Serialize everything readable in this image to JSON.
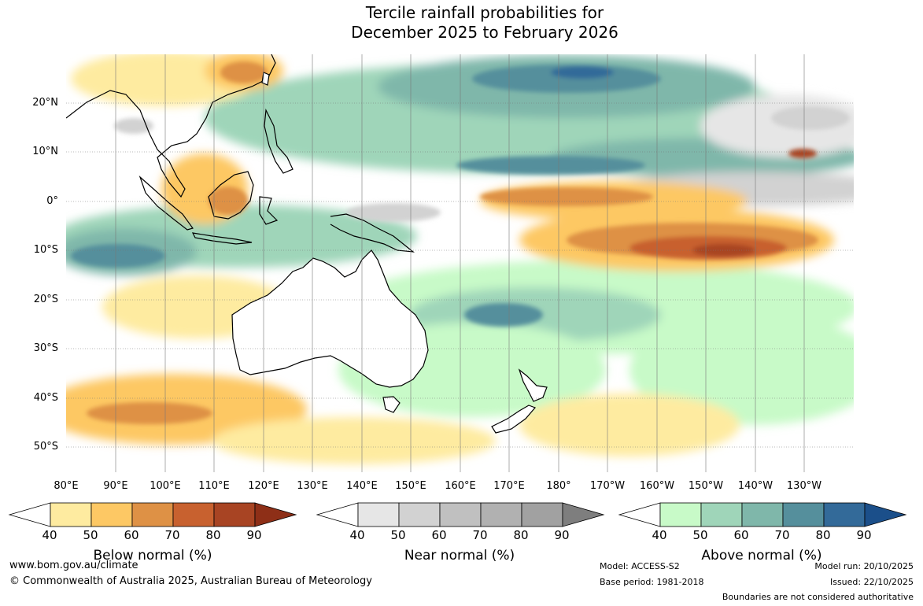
{
  "title": {
    "line1": "Tercile rainfall probabilities for",
    "line2": "December 2025 to February 2026"
  },
  "map": {
    "lat_labels": [
      "20°N",
      "10°N",
      "0°",
      "10°S",
      "20°S",
      "30°S",
      "40°S",
      "50°S"
    ],
    "lon_labels": [
      "80°E",
      "90°E",
      "100°E",
      "110°E",
      "120°E",
      "130°E",
      "140°E",
      "150°E",
      "160°E",
      "170°E",
      "180°",
      "170°W",
      "160°W",
      "150°W",
      "140°W",
      "130°W"
    ]
  },
  "colorbars": [
    {
      "title": "Below normal (%)",
      "ticks": [
        "40",
        "50",
        "60",
        "70",
        "80",
        "90"
      ],
      "colors": [
        "#ffffff",
        "#feeba0",
        "#fdc864",
        "#de9145",
        "#c8612f",
        "#a84423",
        "#8e2f17"
      ]
    },
    {
      "title": "Near normal (%)",
      "ticks": [
        "40",
        "50",
        "60",
        "70",
        "80",
        "90"
      ],
      "colors": [
        "#ffffff",
        "#e6e6e6",
        "#d2d2d2",
        "#c0c0c0",
        "#b1b1b1",
        "#a1a1a1",
        "#7e7e7e"
      ]
    },
    {
      "title": "Above normal (%)",
      "ticks": [
        "40",
        "50",
        "60",
        "70",
        "80",
        "90"
      ],
      "colors": [
        "#ffffff",
        "#c8fac8",
        "#9fd5b9",
        "#7fb7aa",
        "#558f9c",
        "#336a99",
        "#1b4f8a"
      ]
    }
  ],
  "footer": {
    "website": "www.bom.gov.au/climate",
    "copyright": "© Commonwealth of Australia 2025, Australian Bureau of Meteorology",
    "model": "Model: ACCESS-S2",
    "base_period": "Base period: 1981-2018",
    "model_run": "Model run: 20/10/2025",
    "issued": "Issued: 22/10/2025",
    "disclaimer": "Boundaries are not considered authoritative"
  }
}
